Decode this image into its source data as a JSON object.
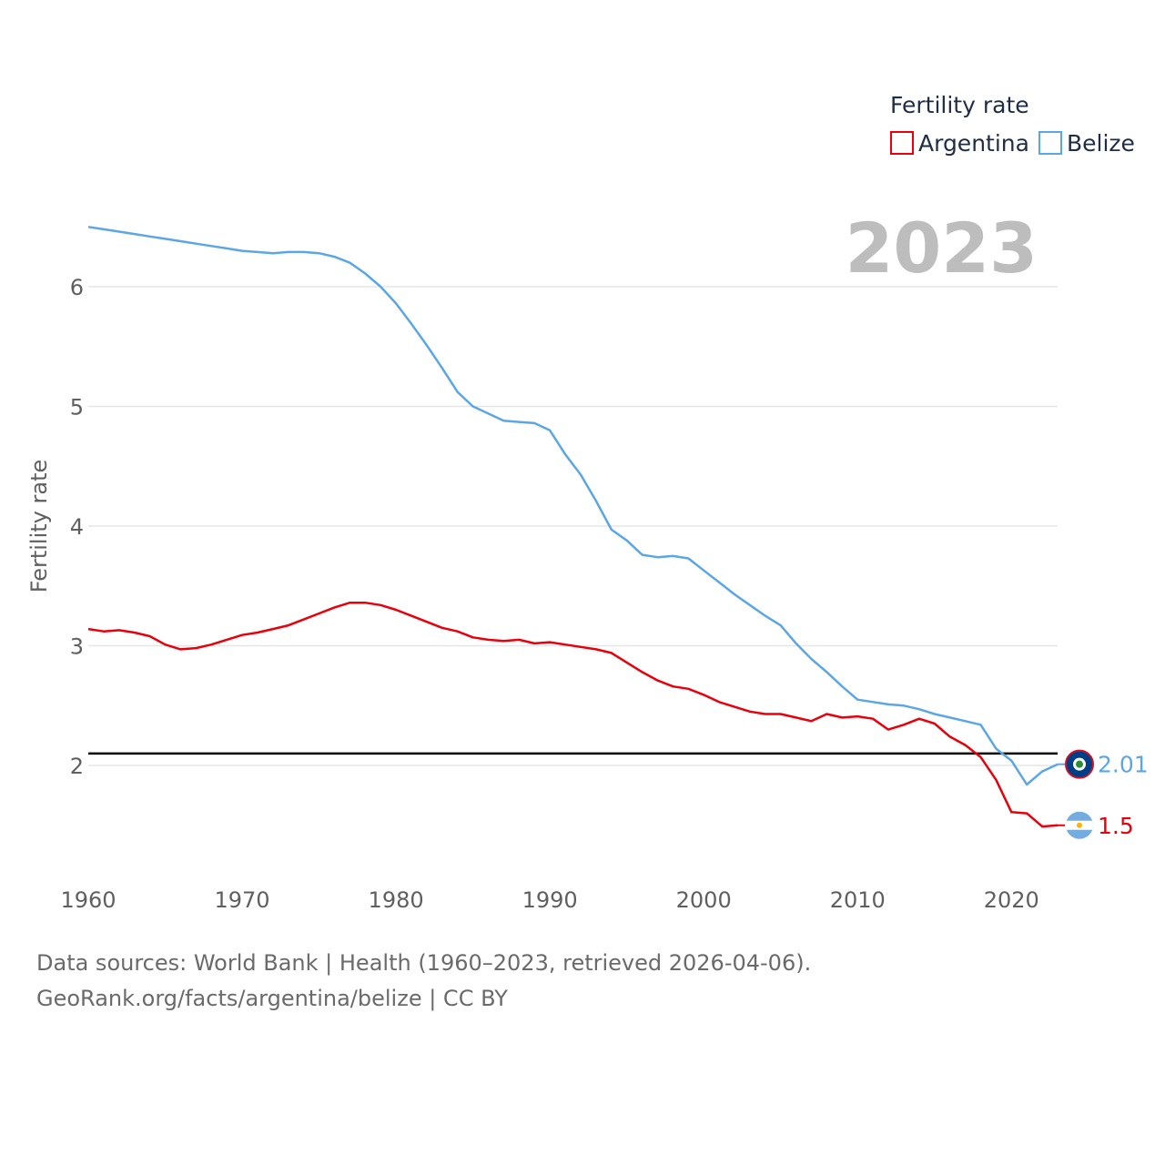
{
  "chart_data": {
    "type": "line",
    "title": "Fertility rate",
    "ylabel": "Fertility rate",
    "xlabel": "",
    "xlim": [
      1960,
      2023
    ],
    "ylim": [
      1.1,
      6.6
    ],
    "x_ticks": [
      1960,
      1970,
      1980,
      1990,
      2000,
      2010,
      2020
    ],
    "y_ticks": [
      2,
      3,
      4,
      5,
      6
    ],
    "reference_line": 2.1,
    "year_label": "2023",
    "x": [
      1960,
      1961,
      1962,
      1963,
      1964,
      1965,
      1966,
      1967,
      1968,
      1969,
      1970,
      1971,
      1972,
      1973,
      1974,
      1975,
      1976,
      1977,
      1978,
      1979,
      1980,
      1981,
      1982,
      1983,
      1984,
      1985,
      1986,
      1987,
      1988,
      1989,
      1990,
      1991,
      1992,
      1993,
      1994,
      1995,
      1996,
      1997,
      1998,
      1999,
      2000,
      2001,
      2002,
      2003,
      2004,
      2005,
      2006,
      2007,
      2008,
      2009,
      2010,
      2011,
      2012,
      2013,
      2014,
      2015,
      2016,
      2017,
      2018,
      2019,
      2020,
      2021,
      2022,
      2023
    ],
    "series": [
      {
        "name": "Argentina",
        "color": "#e8000b",
        "end_label": "1.5",
        "flag": "argentina",
        "values": [
          3.14,
          3.12,
          3.13,
          3.11,
          3.08,
          3.01,
          2.97,
          2.98,
          3.01,
          3.05,
          3.09,
          3.11,
          3.14,
          3.17,
          3.22,
          3.27,
          3.32,
          3.36,
          3.36,
          3.34,
          3.3,
          3.25,
          3.2,
          3.15,
          3.12,
          3.07,
          3.05,
          3.04,
          3.05,
          3.02,
          3.03,
          3.01,
          2.99,
          2.97,
          2.94,
          2.86,
          2.78,
          2.71,
          2.66,
          2.64,
          2.59,
          2.53,
          2.49,
          2.45,
          2.43,
          2.43,
          2.4,
          2.37,
          2.43,
          2.4,
          2.41,
          2.39,
          2.3,
          2.34,
          2.39,
          2.35,
          2.24,
          2.17,
          2.07,
          1.88,
          1.61,
          1.6,
          1.49,
          1.5
        ]
      },
      {
        "name": "Belize",
        "color": "#5ba6e5",
        "end_label": "2.01",
        "flag": "belize",
        "values": [
          6.5,
          6.48,
          6.46,
          6.44,
          6.42,
          6.4,
          6.38,
          6.36,
          6.34,
          6.32,
          6.3,
          6.29,
          6.28,
          6.29,
          6.29,
          6.28,
          6.25,
          6.2,
          6.11,
          6.0,
          5.86,
          5.69,
          5.51,
          5.32,
          5.12,
          5.0,
          4.94,
          4.88,
          4.87,
          4.86,
          4.8,
          4.6,
          4.43,
          4.21,
          3.97,
          3.88,
          3.76,
          3.74,
          3.75,
          3.73,
          3.63,
          3.53,
          3.43,
          3.34,
          3.25,
          3.17,
          3.02,
          2.89,
          2.78,
          2.66,
          2.55,
          2.53,
          2.51,
          2.5,
          2.47,
          2.43,
          2.4,
          2.37,
          2.34,
          2.14,
          2.04,
          1.84,
          1.95,
          2.01
        ]
      }
    ]
  },
  "source": {
    "line1": "Data sources: World Bank | Health (1960–2023, retrieved 2026-04-06).",
    "line2": "GeoRank.org/facts/argentina/belize | CC BY"
  }
}
